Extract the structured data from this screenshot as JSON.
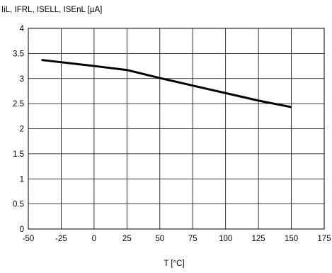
{
  "chart_data": {
    "type": "line",
    "title": "",
    "ylabel": "IiL, IFRL, ISELL, ISEnL [µA]",
    "xlabel": "T [°C]",
    "xlim": [
      -50,
      175
    ],
    "ylim": [
      0,
      4
    ],
    "x_ticks": [
      "-50",
      "-25",
      "0",
      "25",
      "50",
      "75",
      "100",
      "125",
      "150",
      "175"
    ],
    "y_ticks": [
      "0",
      "0.5",
      "1",
      "1.5",
      "2",
      "2.5",
      "3",
      "3.5",
      "4"
    ],
    "grid": true,
    "legend": "none",
    "line_color": "#000000",
    "grid_color": "#000000",
    "series": [
      {
        "x": [
          -40,
          0,
          25,
          50,
          75,
          100,
          125,
          150
        ],
        "y": [
          3.37,
          3.25,
          3.17,
          3.01,
          2.86,
          2.71,
          2.56,
          2.43
        ]
      }
    ]
  }
}
